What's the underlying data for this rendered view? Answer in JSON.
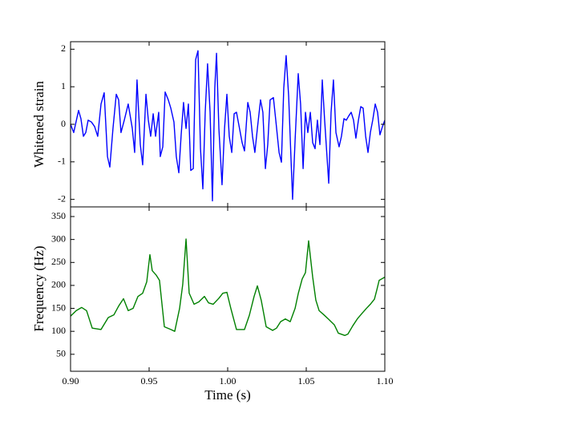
{
  "chart_data": [
    {
      "type": "line",
      "ylabel": "Whitened strain",
      "color": "#0000ff",
      "xlim": [
        0.9,
        1.1
      ],
      "ylim": [
        -2.2,
        2.2
      ],
      "yticks": [
        -2,
        -1,
        0,
        1,
        2
      ],
      "x": [
        0.9,
        0.902,
        0.9051,
        0.9066,
        0.9082,
        0.9097,
        0.9112,
        0.9133,
        0.9153,
        0.9173,
        0.9194,
        0.9214,
        0.9235,
        0.925,
        0.927,
        0.9291,
        0.9306,
        0.9321,
        0.9342,
        0.9367,
        0.9393,
        0.9408,
        0.9423,
        0.9444,
        0.9459,
        0.948,
        0.9495,
        0.951,
        0.9526,
        0.9541,
        0.9561,
        0.9571,
        0.9587,
        0.9602,
        0.9622,
        0.9638,
        0.9658,
        0.9673,
        0.9689,
        0.9704,
        0.9719,
        0.9735,
        0.975,
        0.9765,
        0.9781,
        0.9796,
        0.9811,
        0.9827,
        0.9842,
        0.9857,
        0.9872,
        0.9888,
        0.9903,
        0.9918,
        0.9929,
        0.9944,
        0.9964,
        0.998,
        0.9995,
        1.001,
        1.0026,
        1.0041,
        1.0056,
        1.0077,
        1.0092,
        1.0107,
        1.0128,
        1.0143,
        1.0158,
        1.0173,
        1.0189,
        1.0209,
        1.0224,
        1.024,
        1.0255,
        1.027,
        1.0291,
        1.0306,
        1.0327,
        1.0342,
        1.0357,
        1.0372,
        1.0388,
        1.0403,
        1.0413,
        1.0429,
        1.0449,
        1.0464,
        1.048,
        1.0495,
        1.051,
        1.0526,
        1.0541,
        1.0556,
        1.0571,
        1.0587,
        1.0602,
        1.0617,
        1.0633,
        1.0643,
        1.0658,
        1.0673,
        1.0689,
        1.0709,
        1.0724,
        1.074,
        1.0755,
        1.077,
        1.0786,
        1.0801,
        1.0816,
        1.0832,
        1.0847,
        1.0862,
        1.0878,
        1.0893,
        1.0908,
        1.0923,
        1.0939,
        1.0954,
        1.0969,
        1.0985,
        1.1
      ],
      "values": [
        0.0,
        -0.22,
        0.37,
        0.15,
        -0.32,
        -0.22,
        0.11,
        0.06,
        -0.06,
        -0.32,
        0.54,
        0.84,
        -0.86,
        -1.14,
        -0.11,
        0.8,
        0.65,
        -0.22,
        0.11,
        0.54,
        -0.11,
        -0.75,
        1.18,
        -0.54,
        -1.08,
        0.8,
        0.11,
        -0.32,
        0.28,
        -0.32,
        0.32,
        -0.86,
        -0.6,
        0.86,
        0.65,
        0.43,
        0.06,
        -0.86,
        -1.29,
        -0.28,
        0.58,
        -0.11,
        0.54,
        -1.23,
        -1.18,
        1.72,
        1.96,
        -0.65,
        -1.72,
        0.32,
        1.61,
        0.32,
        -2.04,
        0.97,
        1.89,
        -0.11,
        -1.61,
        -0.11,
        0.8,
        -0.32,
        -0.75,
        0.28,
        0.32,
        -0.15,
        -0.49,
        -0.71,
        0.58,
        0.32,
        -0.32,
        -0.75,
        -0.11,
        0.65,
        0.32,
        -1.18,
        -0.54,
        0.65,
        0.71,
        0.11,
        -0.75,
        -1.01,
        0.97,
        1.83,
        0.75,
        -0.92,
        -2.0,
        -0.43,
        1.35,
        0.54,
        -1.18,
        0.32,
        -0.22,
        0.32,
        -0.49,
        -0.65,
        0.11,
        -0.54,
        1.18,
        0.11,
        -0.92,
        -1.57,
        0.32,
        1.18,
        -0.22,
        -0.6,
        -0.32,
        0.15,
        0.11,
        0.22,
        0.32,
        0.11,
        -0.37,
        0.11,
        0.47,
        0.43,
        -0.32,
        -0.75,
        -0.22,
        0.11,
        0.54,
        0.32,
        -0.28,
        -0.06,
        0.11
      ]
    },
    {
      "type": "line",
      "ylabel": "Frequency (Hz)",
      "xlabel": "Time (s)",
      "color": "#008000",
      "xlim": [
        0.9,
        1.1
      ],
      "ylim": [
        13,
        371
      ],
      "yticks": [
        50,
        100,
        150,
        200,
        250,
        300,
        350
      ],
      "xticks": [
        {
          "value": 0.9,
          "label": "0.90"
        },
        {
          "value": 0.95,
          "label": "0.95"
        },
        {
          "value": 1.0,
          "label": "1.00"
        },
        {
          "value": 1.05,
          "label": "1.05"
        },
        {
          "value": 1.1,
          "label": "1.10"
        }
      ],
      "x": [
        0.9,
        0.9036,
        0.9071,
        0.9102,
        0.9138,
        0.9194,
        0.924,
        0.9276,
        0.9306,
        0.9337,
        0.9367,
        0.9398,
        0.9429,
        0.9459,
        0.9485,
        0.9505,
        0.952,
        0.9546,
        0.9566,
        0.9597,
        0.9638,
        0.9663,
        0.9694,
        0.9714,
        0.9735,
        0.9755,
        0.9786,
        0.9816,
        0.9852,
        0.9878,
        0.9908,
        0.9944,
        0.9969,
        0.9995,
        1.002,
        1.0056,
        1.0107,
        1.0138,
        1.0168,
        1.0189,
        1.0214,
        1.0245,
        1.0286,
        1.0311,
        1.0337,
        1.0367,
        1.0398,
        1.0429,
        1.0449,
        1.0474,
        1.0495,
        1.0515,
        1.0541,
        1.0561,
        1.0582,
        1.0612,
        1.0643,
        1.0679,
        1.0704,
        1.0745,
        1.0765,
        1.0796,
        1.0827,
        1.0857,
        1.0883,
        1.0908,
        1.0934,
        1.0949,
        1.0964,
        1.1
      ],
      "values": [
        133,
        145,
        152,
        145,
        107,
        104,
        130,
        136,
        155,
        171,
        145,
        150,
        176,
        183,
        208,
        267,
        232,
        222,
        211,
        110,
        104,
        100,
        150,
        202,
        301,
        183,
        159,
        164,
        176,
        162,
        159,
        172,
        183,
        185,
        150,
        104,
        104,
        135,
        176,
        199,
        167,
        110,
        102,
        107,
        121,
        127,
        121,
        150,
        182,
        214,
        228,
        297,
        218,
        168,
        145,
        136,
        126,
        114,
        96,
        91,
        94,
        112,
        128,
        140,
        150,
        159,
        170,
        190,
        211,
        218
      ]
    }
  ]
}
